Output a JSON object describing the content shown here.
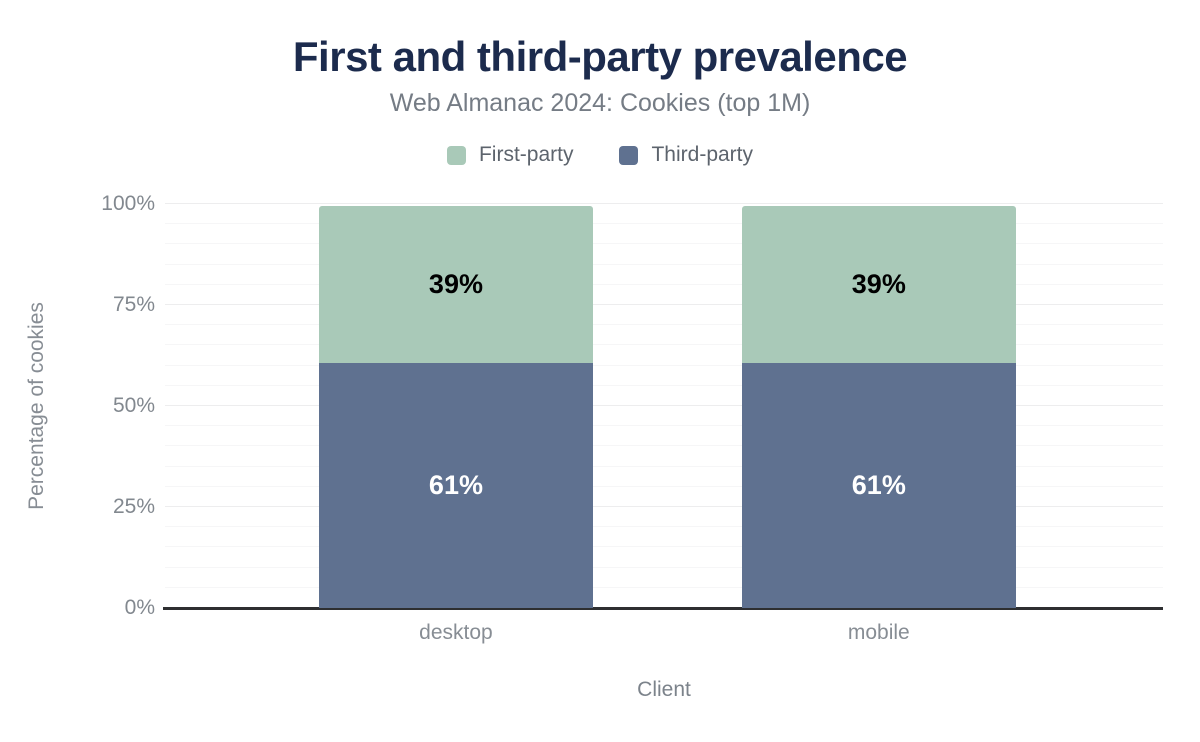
{
  "header": {
    "title": "First and third-party prevalence",
    "subtitle": "Web Almanac 2024: Cookies (top 1M)"
  },
  "legend": [
    {
      "label": "First-party",
      "color": "#a9c9b8"
    },
    {
      "label": "Third-party",
      "color": "#5f7190"
    }
  ],
  "axes": {
    "y_title": "Percentage of cookies",
    "x_title": "Client",
    "y_ticks": [
      "100%",
      "75%",
      "50%",
      "25%",
      "0%"
    ]
  },
  "colors": {
    "title": "#1c2b4d",
    "first_party": "#a9c9b8",
    "third_party": "#5f7190",
    "axis_line": "#2e2f31"
  },
  "chart_data": {
    "type": "bar",
    "stacked": true,
    "title": "First and third-party prevalence",
    "subtitle": "Web Almanac 2024: Cookies (top 1M)",
    "categories": [
      "desktop",
      "mobile"
    ],
    "series": [
      {
        "name": "Third-party",
        "color": "#5f7190",
        "values": [
          61,
          61
        ],
        "labels": [
          "61%",
          "61%"
        ],
        "label_color": "#ffffff"
      },
      {
        "name": "First-party",
        "color": "#a9c9b8",
        "values": [
          39,
          39
        ],
        "labels": [
          "39%",
          "39%"
        ],
        "label_color": "#000000"
      }
    ],
    "xlabel": "Client",
    "ylabel": "Percentage of cookies",
    "ylim": [
      0,
      100
    ],
    "y_tick_step_major": 25,
    "y_tick_step_minor": 5,
    "grid": "horizontal",
    "legend_position": "top"
  }
}
